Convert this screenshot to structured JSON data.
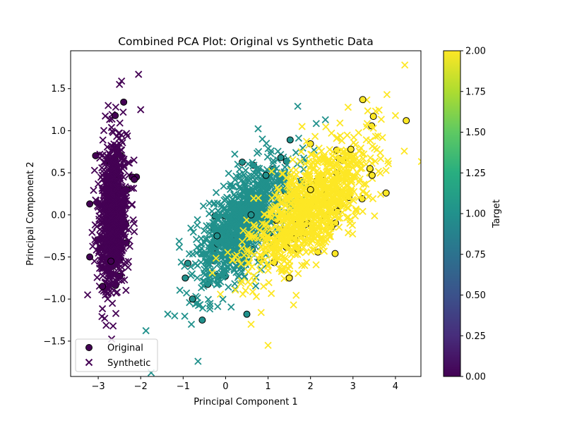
{
  "chart_data": {
    "type": "scatter",
    "title": "Combined PCA Plot: Original vs Synthetic Data",
    "xlabel": "Principal Component 1",
    "ylabel": "Principal Component 2",
    "xlim": [
      -3.65,
      4.6
    ],
    "ylim": [
      -1.92,
      1.95
    ],
    "xticks": [
      -3,
      -2,
      -1,
      0,
      1,
      2,
      3,
      4
    ],
    "yticks": [
      -1.5,
      -1.0,
      -0.5,
      0.0,
      0.5,
      1.0,
      1.5
    ],
    "grid": false,
    "legend": {
      "position": "lower-left",
      "entries": [
        {
          "label": "Original",
          "marker": "circle"
        },
        {
          "label": "Synthetic",
          "marker": "x"
        }
      ]
    },
    "colorbar": {
      "label": "Target",
      "range": [
        0.0,
        2.0
      ],
      "ticks": [
        "0.00",
        "0.25",
        "0.50",
        "0.75",
        "1.00",
        "1.25",
        "1.50",
        "1.75",
        "2.00"
      ],
      "colormap": "viridis"
    },
    "colors": {
      "class_0": "#440154",
      "class_1": "#21918c",
      "class_2": "#fde725"
    },
    "series": [
      {
        "name": "Original",
        "marker": "circle",
        "clusters": [
          {
            "target": 0,
            "center": [
              -2.65,
              0.0
            ],
            "spread": [
              0.17,
              0.45
            ],
            "corr": 0.15,
            "count": 50
          },
          {
            "target": 1,
            "center": [
              0.4,
              -0.1
            ],
            "spread": [
              0.55,
              0.38
            ],
            "corr": 0.65,
            "count": 50
          },
          {
            "target": 2,
            "center": [
              2.0,
              0.1
            ],
            "spread": [
              0.7,
              0.38
            ],
            "corr": 0.65,
            "count": 50
          }
        ],
        "points": [
          {
            "x": -2.6,
            "y": 1.18,
            "target": 0
          },
          {
            "x": -2.4,
            "y": 1.34,
            "target": 0
          },
          {
            "x": -3.2,
            "y": 0.13,
            "target": 0
          },
          {
            "x": -3.2,
            "y": -0.5,
            "target": 0
          },
          {
            "x": -2.1,
            "y": 0.45,
            "target": 0
          },
          {
            "x": -2.2,
            "y": 0.45,
            "target": 0
          },
          {
            "x": -2.15,
            "y": 0.42,
            "target": 0
          },
          {
            "x": -2.9,
            "y": -0.85,
            "target": 0
          },
          {
            "x": -2.7,
            "y": -0.55,
            "target": 0
          },
          {
            "x": -0.95,
            "y": -0.75,
            "target": 1
          },
          {
            "x": -0.78,
            "y": -1.0,
            "target": 1
          },
          {
            "x": -0.55,
            "y": -1.25,
            "target": 1
          },
          {
            "x": 0.5,
            "y": -1.18,
            "target": 1
          },
          {
            "x": -0.2,
            "y": -0.25,
            "target": 1
          },
          {
            "x": 0.95,
            "y": 0.47,
            "target": 1
          },
          {
            "x": 1.3,
            "y": 0.68,
            "target": 1
          },
          {
            "x": 0.6,
            "y": 0.0,
            "target": 1
          },
          {
            "x": 3.23,
            "y": 1.37,
            "target": 2
          },
          {
            "x": 3.48,
            "y": 1.17,
            "target": 2
          },
          {
            "x": 3.78,
            "y": 0.26,
            "target": 2
          },
          {
            "x": 2.95,
            "y": 0.78,
            "target": 2
          },
          {
            "x": 3.45,
            "y": 0.47,
            "target": 2
          },
          {
            "x": 3.4,
            "y": 0.55,
            "target": 2
          },
          {
            "x": 1.5,
            "y": -0.75,
            "target": 2
          },
          {
            "x": 2.0,
            "y": 0.3,
            "target": 2
          }
        ]
      },
      {
        "name": "Synthetic",
        "marker": "x",
        "clusters": [
          {
            "target": 0,
            "center": [
              -2.65,
              0.0
            ],
            "spread": [
              0.17,
              0.45
            ],
            "corr": 0.15,
            "count": 850
          },
          {
            "target": 1,
            "center": [
              0.4,
              -0.1
            ],
            "spread": [
              0.55,
              0.38
            ],
            "corr": 0.65,
            "count": 1000
          },
          {
            "target": 2,
            "center": [
              2.0,
              0.1
            ],
            "spread": [
              0.7,
              0.38
            ],
            "corr": 0.65,
            "count": 1000
          }
        ],
        "points": [
          {
            "x": 4.22,
            "y": 1.78,
            "target": 2
          },
          {
            "x": -2.05,
            "y": 1.67,
            "target": 0
          },
          {
            "x": -2.45,
            "y": 1.59,
            "target": 0
          },
          {
            "x": -2.5,
            "y": 1.55,
            "target": 0
          },
          {
            "x": -2.65,
            "y": -1.32,
            "target": 0
          },
          {
            "x": -3.25,
            "y": -0.95,
            "target": 0
          },
          {
            "x": -2.0,
            "y": 1.25,
            "target": 0
          },
          {
            "x": -0.65,
            "y": -1.74,
            "target": 1
          },
          {
            "x": -1.2,
            "y": -1.2,
            "target": 1
          },
          {
            "x": 1.7,
            "y": 1.29,
            "target": 1
          },
          {
            "x": 2.35,
            "y": 1.13,
            "target": 1
          },
          {
            "x": 1.0,
            "y": -1.55,
            "target": 2
          },
          {
            "x": 1.8,
            "y": 1.05,
            "target": 2
          },
          {
            "x": 3.8,
            "y": 1.43,
            "target": 2
          },
          {
            "x": 4.0,
            "y": 1.18,
            "target": 2
          },
          {
            "x": 0.6,
            "y": -1.3,
            "target": 2
          },
          {
            "x": 1.6,
            "y": -1.07,
            "target": 2
          }
        ]
      }
    ]
  }
}
